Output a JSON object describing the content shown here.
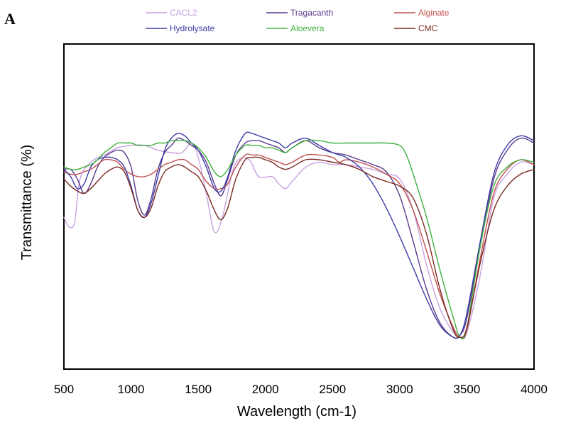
{
  "panel_label": "A",
  "chart_data": {
    "type": "line",
    "title": "",
    "xlabel": "Wavelength (cm-1)",
    "ylabel": "Transmittance (%)",
    "xlim": [
      500,
      4000
    ],
    "ylim": [
      0,
      100
    ],
    "xticks": [
      "500",
      "1000",
      "1500",
      "2000",
      "2500",
      "3000",
      "3500",
      "4000"
    ],
    "xtick_values": [
      500,
      1000,
      1500,
      2000,
      2500,
      3000,
      3500,
      4000
    ],
    "grid": false,
    "legend_position": "top",
    "series": [
      {
        "name": "CACL2",
        "color": "#c8a2e0",
        "x": [
          500,
          540,
          580,
          620,
          700,
          800,
          900,
          1000,
          1100,
          1200,
          1300,
          1380,
          1450,
          1500,
          1560,
          1620,
          1680,
          1750,
          1800,
          1880,
          1950,
          2050,
          2100,
          2150,
          2200,
          2300,
          2400,
          2500,
          2600,
          2700,
          2800,
          2900,
          3000,
          3100,
          3200,
          3300,
          3400,
          3450,
          3500,
          3600,
          3700,
          3800,
          3900,
          4000
        ],
        "y": [
          52,
          48,
          50,
          68,
          75,
          78,
          81,
          82,
          82,
          80,
          79,
          79,
          83,
          77,
          62,
          46,
          52,
          70,
          76,
          76,
          69,
          69,
          66,
          64,
          67,
          73,
          75,
          74,
          74,
          73,
          72,
          70,
          68,
          55,
          32,
          14,
          4,
          2,
          4,
          28,
          60,
          70,
          75,
          74
        ]
      },
      {
        "name": "Tragacanth",
        "color": "#5a3a8c",
        "x": [
          500,
          550,
          600,
          650,
          700,
          750,
          800,
          850,
          900,
          950,
          1000,
          1050,
          1100,
          1150,
          1200,
          1250,
          1300,
          1350,
          1400,
          1450,
          1500,
          1560,
          1620,
          1670,
          1720,
          1780,
          1850,
          1900,
          1950,
          2000,
          2050,
          2100,
          2150,
          2200,
          2300,
          2400,
          2500,
          2600,
          2700,
          2800,
          2900,
          3000,
          3100,
          3200,
          3300,
          3400,
          3450,
          3500,
          3600,
          3700,
          3800,
          3900,
          4000
        ],
        "y": [
          72,
          72,
          68,
          62,
          66,
          73,
          77,
          79,
          80,
          79,
          73,
          59,
          53,
          60,
          72,
          79,
          82,
          85,
          84,
          82,
          80,
          75,
          66,
          61,
          68,
          78,
          83,
          84,
          84,
          83,
          82,
          81,
          79,
          81,
          84,
          81,
          79,
          78,
          76,
          74,
          71,
          61,
          42,
          22,
          8,
          2,
          3,
          10,
          40,
          68,
          80,
          85,
          83
        ]
      },
      {
        "name": "Alginate",
        "color": "#c0504d",
        "x": [
          500,
          550,
          600,
          650,
          700,
          750,
          800,
          850,
          900,
          950,
          1000,
          1050,
          1100,
          1150,
          1200,
          1250,
          1300,
          1350,
          1400,
          1450,
          1500,
          1560,
          1620,
          1670,
          1720,
          1780,
          1850,
          1900,
          1950,
          2000,
          2050,
          2100,
          2150,
          2200,
          2300,
          2400,
          2500,
          2550,
          2600,
          2700,
          2800,
          2900,
          3000,
          3100,
          3200,
          3300,
          3400,
          3450,
          3500,
          3600,
          3700,
          3800,
          3900,
          4000
        ],
        "y": [
          71,
          70,
          70,
          71,
          72,
          74,
          76,
          76,
          75,
          72,
          70,
          69,
          69,
          70,
          72,
          74,
          75,
          76,
          76,
          74,
          72,
          67,
          64,
          64,
          66,
          73,
          78,
          78,
          78,
          77,
          76,
          75,
          74,
          75,
          78,
          78,
          77,
          75,
          76,
          75,
          73,
          70,
          66,
          55,
          38,
          20,
          6,
          2,
          5,
          35,
          62,
          72,
          76,
          74
        ]
      },
      {
        "name": "Hydrolysate",
        "color": "#3b3ba8",
        "x": [
          500,
          550,
          600,
          650,
          700,
          750,
          800,
          850,
          900,
          950,
          1000,
          1050,
          1100,
          1150,
          1200,
          1250,
          1300,
          1350,
          1400,
          1450,
          1500,
          1560,
          1620,
          1670,
          1720,
          1780,
          1850,
          1900,
          1950,
          2000,
          2050,
          2100,
          2150,
          2200,
          2300,
          2400,
          2500,
          2600,
          2700,
          2800,
          2900,
          3000,
          3100,
          3200,
          3300,
          3400,
          3450,
          3500,
          3600,
          3700,
          3800,
          3900,
          4000
        ],
        "y": [
          72,
          69,
          64,
          66,
          73,
          76,
          77,
          77,
          76,
          73,
          65,
          55,
          52,
          58,
          69,
          80,
          85,
          87,
          86,
          83,
          80,
          73,
          64,
          63,
          69,
          80,
          87,
          87,
          86,
          85,
          84,
          83,
          81,
          83,
          85,
          82,
          79,
          77,
          73,
          66,
          56,
          44,
          31,
          18,
          7,
          2,
          3,
          12,
          42,
          70,
          82,
          86,
          84
        ]
      },
      {
        "name": "Aloevera",
        "color": "#3fb03f",
        "x": [
          500,
          550,
          600,
          650,
          700,
          750,
          800,
          850,
          900,
          950,
          1000,
          1050,
          1100,
          1150,
          1200,
          1250,
          1300,
          1350,
          1400,
          1450,
          1500,
          1560,
          1620,
          1670,
          1720,
          1780,
          1850,
          1900,
          1950,
          2000,
          2050,
          2100,
          2150,
          2200,
          2300,
          2400,
          2500,
          2600,
          2700,
          2800,
          2900,
          3000,
          3050,
          3100,
          3200,
          3300,
          3400,
          3450,
          3500,
          3600,
          3700,
          3800,
          3900,
          4000
        ],
        "y": [
          73,
          72,
          72,
          73,
          74,
          76,
          79,
          81,
          83,
          83,
          83,
          82,
          82,
          82,
          83,
          83,
          84,
          84,
          84,
          83,
          81,
          77,
          71,
          69,
          72,
          78,
          82,
          82,
          82,
          81,
          81,
          80,
          79,
          81,
          84,
          84,
          83,
          83,
          83,
          83,
          83,
          82,
          78,
          70,
          52,
          30,
          10,
          2,
          6,
          40,
          65,
          73,
          76,
          75
        ]
      },
      {
        "name": "CMC",
        "color": "#7a2a22",
        "x": [
          500,
          550,
          600,
          650,
          700,
          750,
          800,
          850,
          900,
          950,
          1000,
          1050,
          1100,
          1150,
          1200,
          1250,
          1300,
          1350,
          1400,
          1450,
          1500,
          1560,
          1620,
          1670,
          1720,
          1780,
          1850,
          1900,
          1950,
          2000,
          2050,
          2100,
          2150,
          2200,
          2300,
          2400,
          2500,
          2600,
          2700,
          2800,
          2900,
          3000,
          3100,
          3200,
          3300,
          3400,
          3450,
          3500,
          3600,
          3700,
          3800,
          3900,
          4000
        ],
        "y": [
          68,
          65,
          63,
          62,
          64,
          67,
          70,
          72,
          73,
          71,
          64,
          55,
          52,
          56,
          65,
          71,
          73,
          74,
          73,
          71,
          69,
          63,
          55,
          51,
          56,
          68,
          76,
          77,
          77,
          76,
          75,
          73,
          72,
          73,
          76,
          76,
          75,
          74,
          72,
          69,
          67,
          65,
          60,
          45,
          22,
          5,
          2,
          6,
          33,
          55,
          65,
          70,
          72
        ]
      }
    ]
  }
}
